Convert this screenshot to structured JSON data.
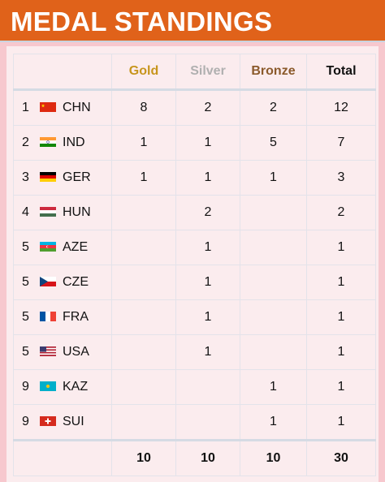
{
  "title": "MEDAL STANDINGS",
  "headers": {
    "gold": "Gold",
    "silver": "Silver",
    "bronze": "Bronze",
    "total": "Total"
  },
  "colors": {
    "header_bg": "#e0621a",
    "gold": "#c7951c",
    "silver": "#b0b0b0",
    "bronze": "#8b5a2b",
    "panel": "#fbecee"
  },
  "rows": [
    {
      "rank": "1",
      "code": "CHN",
      "flag": "china-flag-icon",
      "gold": "8",
      "silver": "2",
      "bronze": "2",
      "total": "12"
    },
    {
      "rank": "2",
      "code": "IND",
      "flag": "india-flag-icon",
      "gold": "1",
      "silver": "1",
      "bronze": "5",
      "total": "7"
    },
    {
      "rank": "3",
      "code": "GER",
      "flag": "germany-flag-icon",
      "gold": "1",
      "silver": "1",
      "bronze": "1",
      "total": "3"
    },
    {
      "rank": "4",
      "code": "HUN",
      "flag": "hungary-flag-icon",
      "gold": "",
      "silver": "2",
      "bronze": "",
      "total": "2"
    },
    {
      "rank": "5",
      "code": "AZE",
      "flag": "azerbaijan-flag-icon",
      "gold": "",
      "silver": "1",
      "bronze": "",
      "total": "1"
    },
    {
      "rank": "5",
      "code": "CZE",
      "flag": "czechia-flag-icon",
      "gold": "",
      "silver": "1",
      "bronze": "",
      "total": "1"
    },
    {
      "rank": "5",
      "code": "FRA",
      "flag": "france-flag-icon",
      "gold": "",
      "silver": "1",
      "bronze": "",
      "total": "1"
    },
    {
      "rank": "5",
      "code": "USA",
      "flag": "usa-flag-icon",
      "gold": "",
      "silver": "1",
      "bronze": "",
      "total": "1"
    },
    {
      "rank": "9",
      "code": "KAZ",
      "flag": "kazakhstan-flag-icon",
      "gold": "",
      "silver": "",
      "bronze": "1",
      "total": "1"
    },
    {
      "rank": "9",
      "code": "SUI",
      "flag": "switzerland-flag-icon",
      "gold": "",
      "silver": "",
      "bronze": "1",
      "total": "1"
    }
  ],
  "totals": {
    "gold": "10",
    "silver": "10",
    "bronze": "10",
    "total": "30"
  }
}
